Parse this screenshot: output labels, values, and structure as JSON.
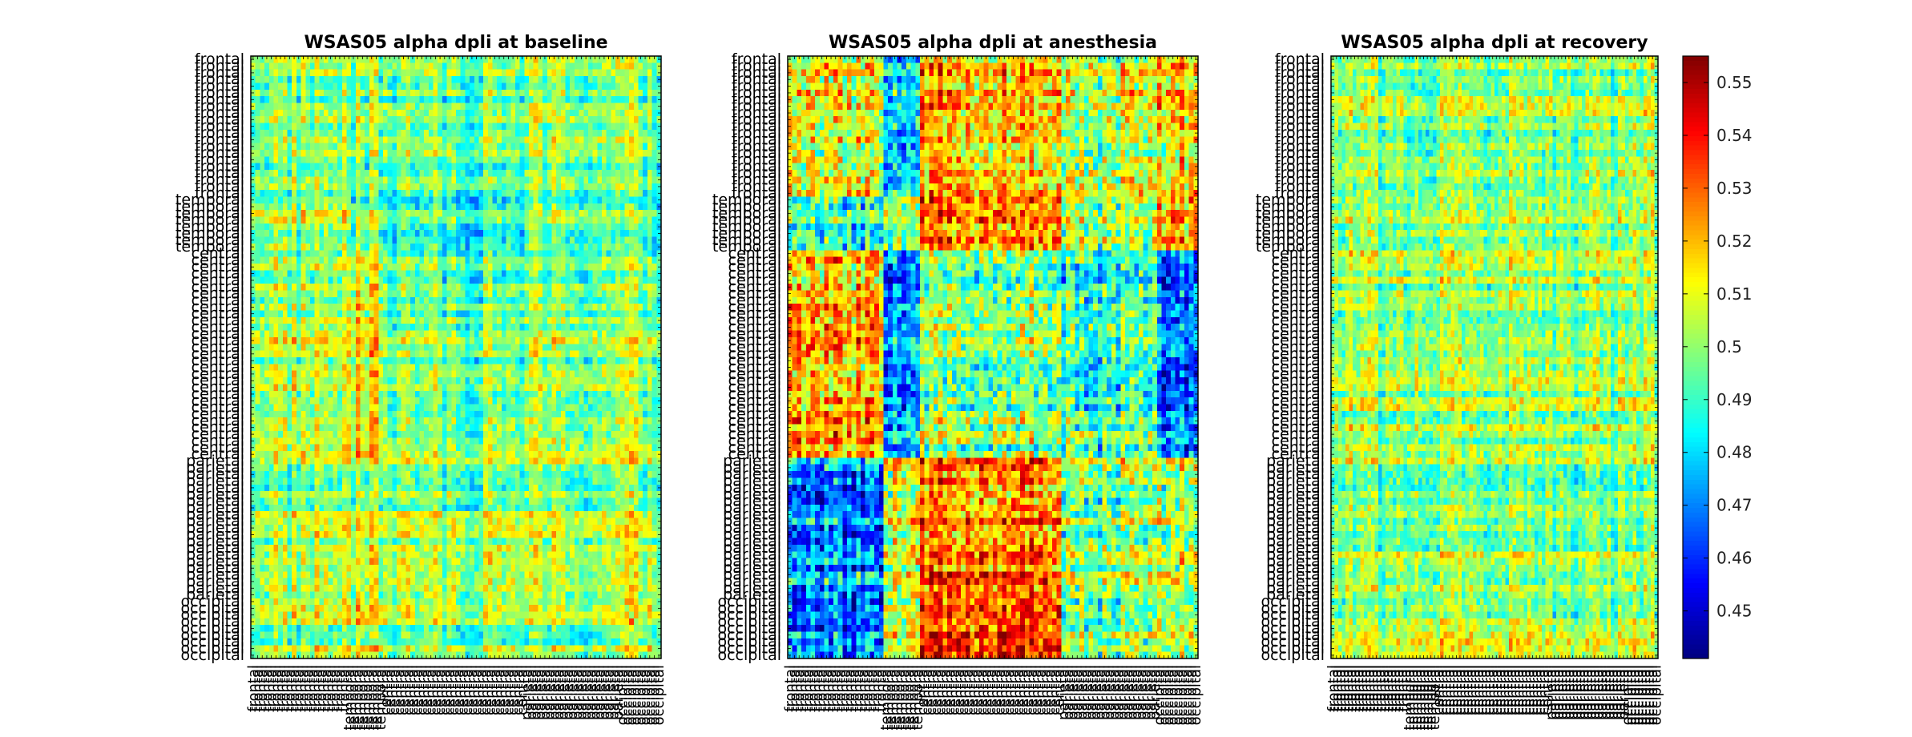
{
  "chart_data": [
    {
      "type": "heatmap",
      "title": "WSAS05 alpha dpli at baseline",
      "state": "baseline",
      "region_groups": [
        {
          "label": "frontal",
          "count": 21
        },
        {
          "label": "temporal",
          "count": 8
        },
        {
          "label": "central",
          "count": 31
        },
        {
          "label": "parietal",
          "count": 21
        },
        {
          "label": "occipital",
          "count": 9
        }
      ],
      "mean_block_matrix": [
        [
          0.499,
          0.497,
          0.496,
          0.499,
          0.498
        ],
        [
          0.503,
          0.497,
          0.489,
          0.496,
          0.492
        ],
        [
          0.504,
          0.511,
          0.497,
          0.499,
          0.501
        ],
        [
          0.501,
          0.504,
          0.501,
          0.5,
          0.502
        ],
        [
          0.502,
          0.508,
          0.499,
          0.498,
          0.506
        ]
      ]
    },
    {
      "type": "heatmap",
      "title": "WSAS05 alpha dpli at anesthesia",
      "state": "anesthesia",
      "region_groups": [
        {
          "label": "frontal",
          "count": 21
        },
        {
          "label": "temporal",
          "count": 8
        },
        {
          "label": "central",
          "count": 31
        },
        {
          "label": "parietal",
          "count": 21
        },
        {
          "label": "occipital",
          "count": 9
        }
      ],
      "mean_block_matrix": [
        [
          0.51,
          0.48,
          0.52,
          0.505,
          0.515
        ],
        [
          0.485,
          0.5,
          0.525,
          0.5,
          0.52
        ],
        [
          0.52,
          0.472,
          0.5,
          0.49,
          0.468
        ],
        [
          0.47,
          0.51,
          0.53,
          0.5,
          0.505
        ],
        [
          0.466,
          0.505,
          0.535,
          0.495,
          0.5
        ]
      ]
    },
    {
      "type": "heatmap",
      "title": "WSAS05 alpha dpli at recovery",
      "state": "recovery",
      "region_groups": [
        {
          "label": "frontal",
          "count": 21
        },
        {
          "label": "temporal",
          "count": 8
        },
        {
          "label": "central",
          "count": 31
        },
        {
          "label": "parietal",
          "count": 21
        },
        {
          "label": "occipital",
          "count": 9
        }
      ],
      "mean_block_matrix": [
        [
          0.5,
          0.496,
          0.5,
          0.5,
          0.502
        ],
        [
          0.498,
          0.5,
          0.5,
          0.5,
          0.5
        ],
        [
          0.5,
          0.5,
          0.5,
          0.5,
          0.5
        ],
        [
          0.5,
          0.5,
          0.5,
          0.5,
          0.5
        ],
        [
          0.5,
          0.508,
          0.505,
          0.5,
          0.504
        ]
      ]
    }
  ],
  "colorbar": {
    "colormap": "jet",
    "min": 0.441,
    "max": 0.555,
    "ticks": [
      0.45,
      0.46,
      0.47,
      0.48,
      0.49,
      0.5,
      0.51,
      0.52,
      0.53,
      0.54,
      0.55
    ],
    "tick_labels": [
      "0.45",
      "0.46",
      "0.47",
      "0.48",
      "0.49",
      "0.5",
      "0.51",
      "0.52",
      "0.53",
      "0.54",
      "0.55"
    ]
  }
}
